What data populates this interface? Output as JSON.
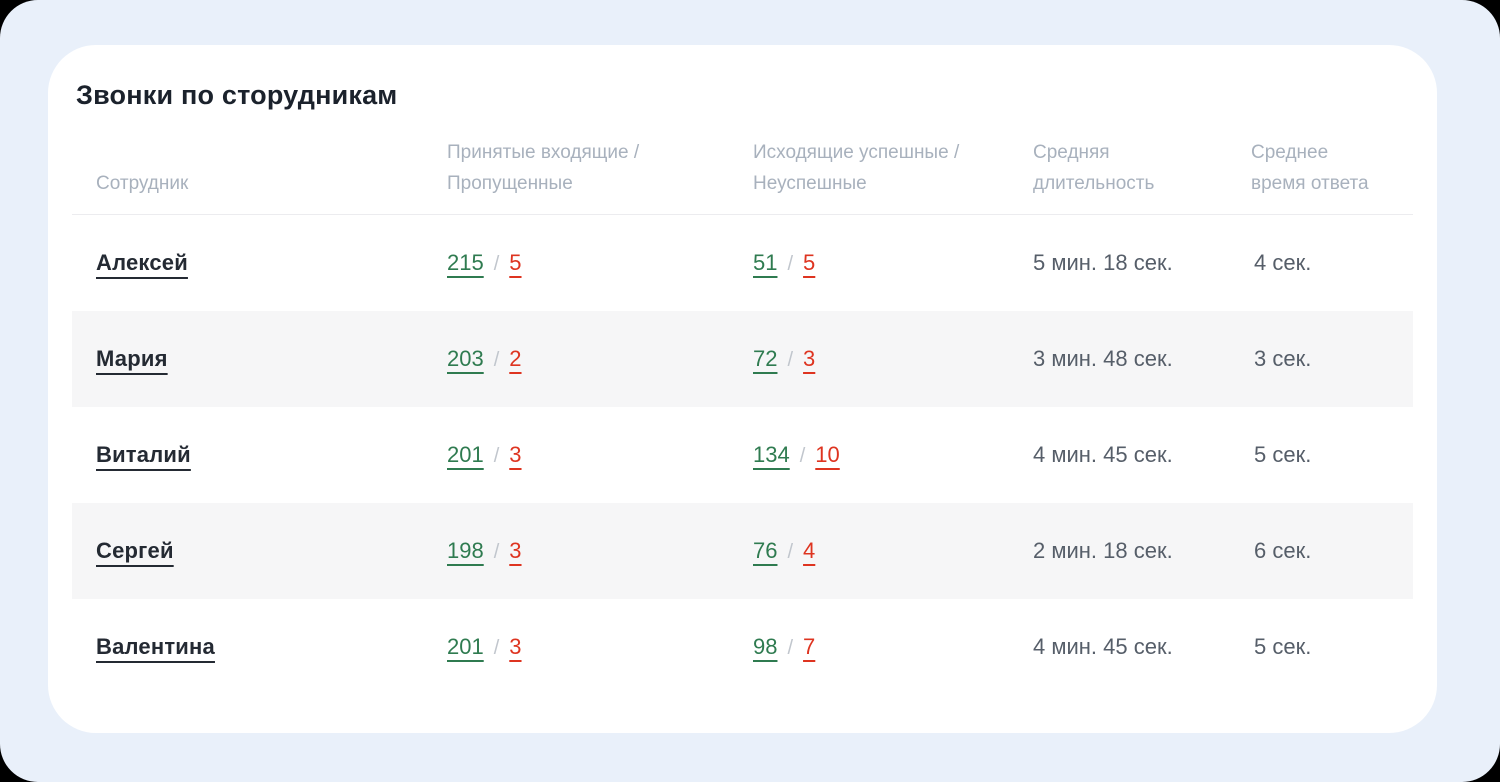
{
  "page": {
    "background_color": "#e9f0fa",
    "card_color": "#ffffff"
  },
  "table": {
    "title": "Звонки по сторудникам",
    "separator": "/",
    "columns": [
      {
        "lines": [
          "Сотрудник"
        ]
      },
      {
        "lines": [
          "Принятые входящие /",
          "Пропущенные"
        ]
      },
      {
        "lines": [
          "Исходящие успешные /",
          "Неуспешные"
        ]
      },
      {
        "lines": [
          "Средняя",
          "длительность"
        ]
      },
      {
        "lines": [
          "Среднее",
          "время ответа"
        ]
      }
    ],
    "colors": {
      "success": "#2f7b50",
      "danger": "#de3420",
      "header_text": "#a8b1bd",
      "name_text": "#242a33",
      "value_text": "#565e69",
      "stripe_background": "#f6f6f7"
    },
    "rows": [
      {
        "name": "Алексей",
        "incoming_accepted": "215",
        "incoming_missed": "5",
        "outgoing_success": "51",
        "outgoing_failed": "5",
        "avg_duration": "5 мин. 18 сек.",
        "avg_answer_time": "4 сек."
      },
      {
        "name": "Мария",
        "incoming_accepted": "203",
        "incoming_missed": "2",
        "outgoing_success": "72",
        "outgoing_failed": "3",
        "avg_duration": "3 мин. 48 сек.",
        "avg_answer_time": "3 сек."
      },
      {
        "name": "Виталий",
        "incoming_accepted": "201",
        "incoming_missed": "3",
        "outgoing_success": "134",
        "outgoing_failed": "10",
        "avg_duration": "4 мин. 45 сек.",
        "avg_answer_time": "5 сек."
      },
      {
        "name": "Сергей",
        "incoming_accepted": "198",
        "incoming_missed": "3",
        "outgoing_success": "76",
        "outgoing_failed": "4",
        "avg_duration": "2 мин. 18 сек.",
        "avg_answer_time": "6 сек."
      },
      {
        "name": "Валентина",
        "incoming_accepted": "201",
        "incoming_missed": "3",
        "outgoing_success": "98",
        "outgoing_failed": "7",
        "avg_duration": "4 мин. 45 сек.",
        "avg_answer_time": "5 сек."
      }
    ]
  }
}
